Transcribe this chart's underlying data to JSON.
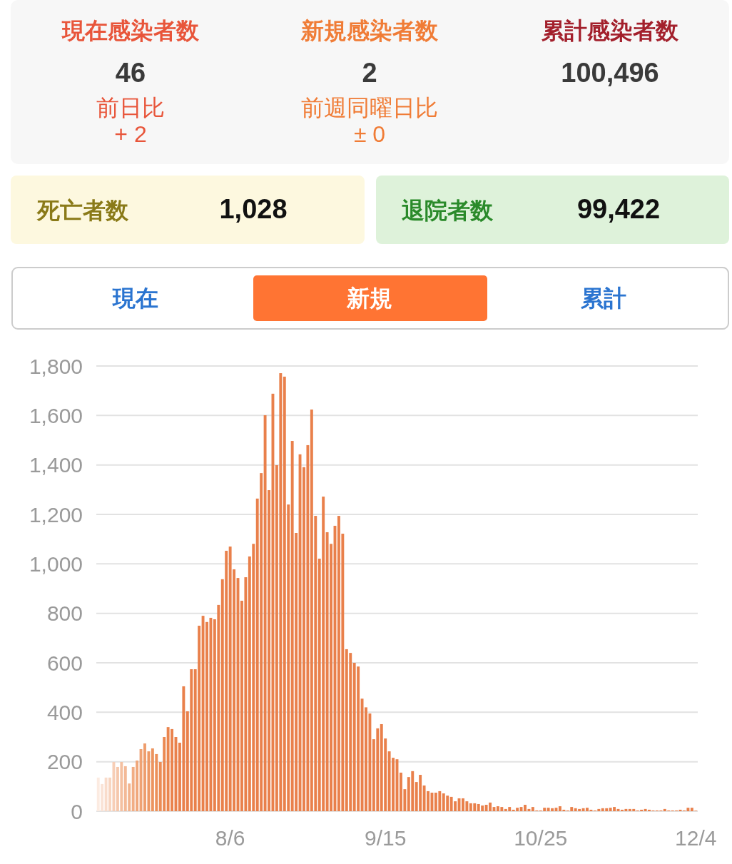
{
  "chart_data": [
    {
      "type": "other",
      "annotations": [
        "現在感染者数",
        "46",
        "前日比",
        "+ 2",
        "新規感染者数",
        "2",
        "前週同曜日比",
        "± 0",
        "累計感染者数",
        "100,496",
        "死亡者数",
        "1,028",
        "退院者数",
        "99,422",
        "現在",
        "新規",
        "累計"
      ]
    },
    {
      "type": "bar",
      "x": [
        "--07-03",
        "--07-04",
        "--07-05",
        "--07-06",
        "--07-07",
        "--07-08",
        "--07-09",
        "--07-10",
        "--07-11",
        "--07-12",
        "--07-13",
        "--07-14",
        "--07-15",
        "--07-16",
        "--07-17",
        "--07-18",
        "--07-19",
        "--07-20",
        "--07-21",
        "--07-22",
        "--07-23",
        "--07-24",
        "--07-25",
        "--07-26",
        "--07-27",
        "--07-28",
        "--07-29",
        "--07-30",
        "--07-31",
        "--08-01",
        "--08-02",
        "--08-03",
        "--08-04",
        "--08-05",
        "--08-06",
        "--08-07",
        "--08-08",
        "--08-09",
        "--08-10",
        "--08-11",
        "--08-12",
        "--08-13",
        "--08-14",
        "--08-15",
        "--08-16",
        "--08-17",
        "--08-18",
        "--08-19",
        "--08-20",
        "--08-21",
        "--08-22",
        "--08-23",
        "--08-24",
        "--08-25",
        "--08-26",
        "--08-27",
        "--08-28",
        "--08-29",
        "--08-30",
        "--08-31",
        "--09-01",
        "--09-02",
        "--09-03",
        "--09-04",
        "--09-05",
        "--09-06",
        "--09-07",
        "--09-08",
        "--09-09",
        "--09-10",
        "--09-11",
        "--09-12",
        "--09-13",
        "--09-14",
        "--09-15",
        "--09-16",
        "--09-17",
        "--09-18",
        "--09-19",
        "--09-20",
        "--09-21",
        "--09-22",
        "--09-23",
        "--09-24",
        "--09-25",
        "--09-26",
        "--09-27",
        "--09-28",
        "--09-29",
        "--09-30",
        "--10-01",
        "--10-02",
        "--10-03",
        "--10-04",
        "--10-05",
        "--10-06",
        "--10-07",
        "--10-08",
        "--10-09",
        "--10-10",
        "--10-11",
        "--10-12",
        "--10-13",
        "--10-14",
        "--10-15",
        "--10-16",
        "--10-17",
        "--10-18",
        "--10-19",
        "--10-20",
        "--10-21",
        "--10-22",
        "--10-23",
        "--10-24",
        "--10-25",
        "--10-26",
        "--10-27",
        "--10-28",
        "--10-29",
        "--10-30",
        "--10-31",
        "--11-01",
        "--11-02",
        "--11-03",
        "--11-04",
        "--11-05",
        "--11-06",
        "--11-07",
        "--11-08",
        "--11-09",
        "--11-10",
        "--11-11",
        "--11-12",
        "--11-13",
        "--11-14",
        "--11-15",
        "--11-16",
        "--11-17",
        "--11-18",
        "--11-19",
        "--11-20",
        "--11-21",
        "--11-22",
        "--11-23",
        "--11-24",
        "--11-25",
        "--11-26",
        "--11-27",
        "--11-28",
        "--11-29",
        "--11-30",
        "--12-01",
        "--12-02",
        "--12-03",
        "--12-04"
      ],
      "values": [
        136,
        110,
        136,
        136,
        199,
        179,
        199,
        182,
        112,
        179,
        205,
        251,
        274,
        242,
        254,
        231,
        199,
        300,
        340,
        332,
        300,
        277,
        505,
        404,
        574,
        574,
        750,
        790,
        765,
        782,
        776,
        834,
        938,
        1053,
        1070,
        978,
        943,
        851,
        946,
        1030,
        1081,
        1264,
        1367,
        1601,
        1298,
        1688,
        1399,
        1771,
        1757,
        1240,
        1497,
        1125,
        1443,
        1391,
        1480,
        1624,
        1194,
        1021,
        1272,
        1128,
        1081,
        1154,
        1194,
        1122,
        655,
        640,
        600,
        585,
        455,
        420,
        395,
        291,
        335,
        352,
        294,
        242,
        216,
        210,
        156,
        89,
        138,
        162,
        118,
        147,
        104,
        81,
        75,
        75,
        81,
        72,
        63,
        58,
        40,
        52,
        52,
        40,
        32,
        32,
        29,
        23,
        26,
        35,
        17,
        20,
        17,
        9,
        17,
        6,
        14,
        17,
        26,
        9,
        17,
        3,
        3,
        14,
        14,
        12,
        14,
        20,
        6,
        3,
        17,
        12,
        9,
        12,
        14,
        6,
        3,
        9,
        12,
        12,
        14,
        17,
        9,
        6,
        9,
        9,
        9,
        3,
        6,
        9,
        6,
        3,
        3,
        3,
        9,
        3,
        3,
        3,
        6,
        3,
        14,
        14,
        2
      ],
      "colors": [
        "#fcebe1",
        "#fae3d6",
        "#f9dccb",
        "#f8d5c0",
        "#f7ceb6",
        "#f5c7ab",
        "#f4c0a1",
        "#f3b997",
        "#f2b38d",
        "#f1ad84",
        "#f0a77b",
        "#efa273",
        "#ee9d6c",
        "#ed9865",
        "#ec945f",
        "#ec9059",
        "#eb8c55",
        "#eb8851",
        "#ea854e",
        "#ea834d",
        "#e9814c",
        "#e9804b",
        "#e9804b",
        "#e9804b",
        "#e9804b",
        "#e9804b",
        "#e9804b",
        "#e9804b",
        "#e9804b",
        "#e9804b",
        "#e9804b",
        "#e9804b",
        "#e9804b",
        "#e9804b",
        "#e9804b",
        "#e9804b",
        "#e9804b",
        "#e9804b",
        "#e9804b",
        "#e9804b",
        "#e9804b",
        "#e9804b",
        "#e9804b",
        "#e9804b",
        "#e9804b",
        "#e9804b",
        "#e9804b",
        "#e9804b",
        "#e9804b",
        "#e9804b",
        "#e9804b",
        "#e9804b",
        "#e9804b",
        "#e9804b",
        "#e9804b",
        "#e9804b",
        "#e9804b",
        "#e9804b",
        "#e9804b",
        "#e9804b",
        "#e9804b",
        "#e9804b",
        "#e9804b",
        "#e9804b",
        "#e9804b",
        "#e9804b",
        "#e9804b",
        "#e9804b",
        "#e9804b",
        "#e9804b",
        "#e9804b",
        "#e9804b",
        "#e9804b",
        "#e9804b",
        "#e9804b",
        "#e9804b",
        "#e9804b",
        "#e9804b",
        "#e9804b",
        "#e9804b",
        "#e9804b",
        "#e9804b",
        "#e9804b",
        "#e9804b",
        "#e9804b",
        "#e9804b",
        "#e9804b",
        "#e9804b",
        "#e9804b",
        "#e9804b",
        "#e9804b",
        "#e9804b",
        "#e9804b",
        "#e9804b",
        "#e9804b",
        "#e9804b",
        "#e9804b",
        "#e9804b",
        "#e9804b",
        "#e9804b",
        "#e9804b",
        "#e9804b",
        "#e9804b",
        "#e9804b",
        "#e9804b",
        "#e9804b",
        "#e9804b",
        "#e9804b",
        "#e9804b",
        "#e9804b",
        "#e9804b",
        "#e9804b",
        "#e9804b",
        "#e9804b",
        "#e9804b",
        "#e9804b",
        "#e9804b",
        "#e9804b",
        "#e9804b",
        "#e9804b",
        "#e9804b",
        "#e9804b",
        "#e9804b",
        "#e9804b",
        "#e9804b",
        "#e9804b",
        "#e9804b",
        "#e9804b",
        "#e9804b",
        "#e9804b",
        "#e9804b",
        "#e9804b",
        "#e9804b",
        "#e9804b",
        "#e9804b",
        "#e9804b",
        "#e9804b",
        "#e9804b",
        "#e9804b",
        "#e9804b",
        "#e9804b",
        "#e9804b",
        "#e9804b",
        "#e9804b",
        "#e9804b",
        "#e9804b",
        "#e9804b",
        "#e9804b",
        "#e9804b",
        "#e9804b",
        "#e9804b",
        "#e9804b",
        "#e9804b",
        "#e9804b",
        "#e9804b"
      ],
      "xlim": [
        "--07-03",
        "--12-04"
      ],
      "xticks": [
        {
          "value": "--08-06",
          "label": "8/6"
        },
        {
          "value": "--09-15",
          "label": "9/15"
        },
        {
          "value": "--10-25",
          "label": "10/25"
        },
        {
          "value": "--12-04",
          "label": "12/4"
        }
      ],
      "ylim": [
        0,
        1800
      ],
      "yticks": [
        0,
        200,
        400,
        600,
        800,
        {
          "value": 1000,
          "label": "1,000"
        },
        {
          "value": 1200,
          "label": "1,200"
        },
        {
          "value": 1400,
          "label": "1,400"
        },
        {
          "value": 1600,
          "label": "1,600"
        },
        {
          "value": 1800,
          "label": "1,800"
        }
      ],
      "grid": "y"
    }
  ]
}
